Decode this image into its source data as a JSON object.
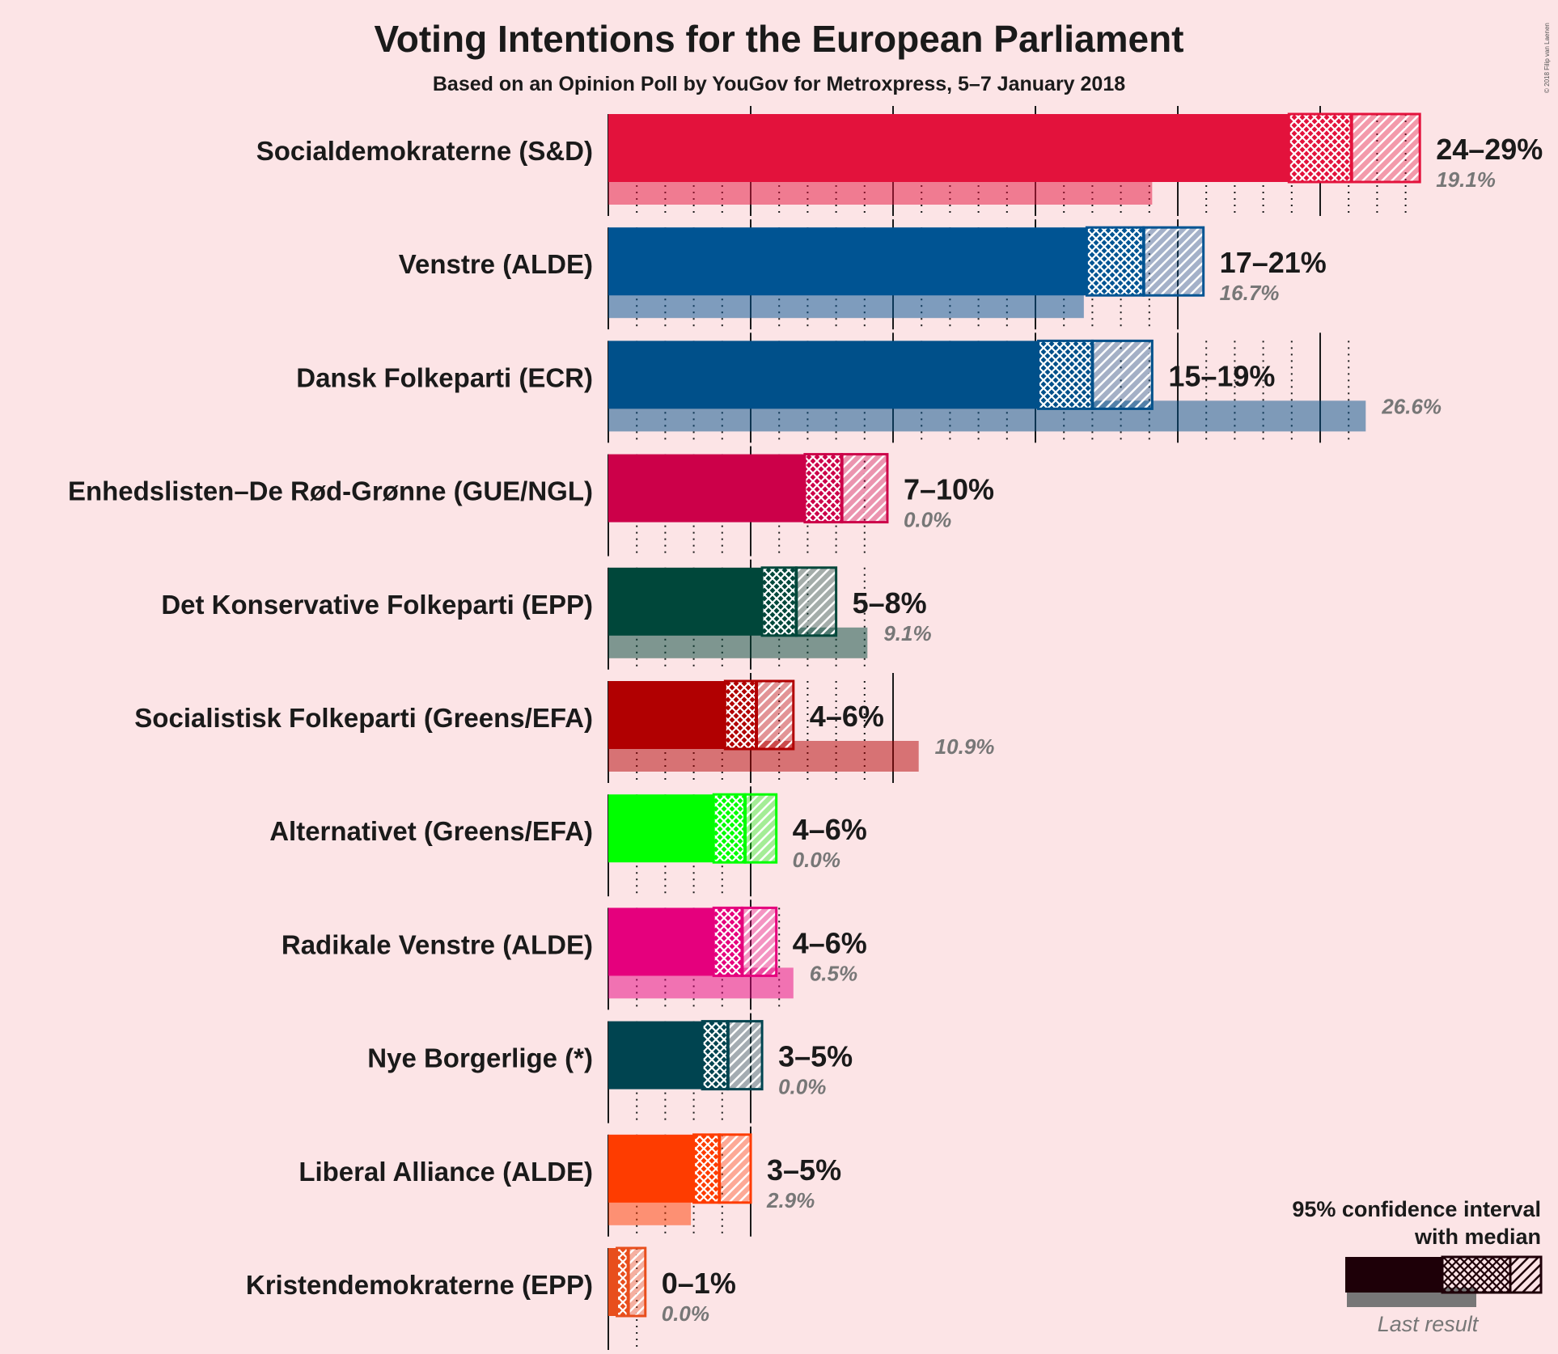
{
  "chart_data": {
    "type": "bar",
    "title": "Voting Intentions for the European Parliament",
    "subtitle": "Based on an Opinion Poll by YouGov for Metroxpress, 5–7 January 2018",
    "copyright": "© 2018 Filip van Laenen",
    "xlim": [
      0,
      30
    ],
    "gridlines": [
      0,
      5,
      10,
      15,
      20,
      25
    ],
    "legend": {
      "title_line1": "95% confidence interval",
      "title_line2": "with median",
      "last_result_label": "Last result",
      "position": "bottom-right"
    },
    "categories": [
      "Socialdemokraterne (S&D)",
      "Venstre (ALDE)",
      "Dansk Folkeparti (ECR)",
      "Enhedslisten–De Rød-Grønne (GUE/NGL)",
      "Det Konservative Folkeparti (EPP)",
      "Socialistisk Folkeparti (Greens/EFA)",
      "Alternativet (Greens/EFA)",
      "Radikale Venstre (ALDE)",
      "Nye Borgerlige (*)",
      "Liberal Alliance (ALDE)",
      "Kristendemokraterne (EPP)"
    ],
    "series": [
      {
        "parties": [
          {
            "name": "Socialdemokraterne (S&D)",
            "color": "#e3123c",
            "low": 23.9,
            "median": 26.1,
            "high": 28.5,
            "range_label": "24–29%",
            "last": 19.1,
            "last_label": "19.1%"
          },
          {
            "name": "Venstre (ALDE)",
            "color": "#005493",
            "low": 16.8,
            "median": 18.8,
            "high": 20.9,
            "range_label": "17–21%",
            "last": 16.7,
            "last_label": "16.7%"
          },
          {
            "name": "Dansk Folkeparti (ECR)",
            "color": "#00508a",
            "low": 15.1,
            "median": 17.0,
            "high": 19.1,
            "range_label": "15–19%",
            "last": 26.6,
            "last_label": "26.6%"
          },
          {
            "name": "Enhedslisten–De Rød-Grønne (GUE/NGL)",
            "color": "#cc0049",
            "low": 6.9,
            "median": 8.2,
            "high": 9.8,
            "range_label": "7–10%",
            "last": 0.0,
            "last_label": "0.0%"
          },
          {
            "name": "Det Konservative Folkeparti (EPP)",
            "color": "#00473a",
            "low": 5.4,
            "median": 6.6,
            "high": 8.0,
            "range_label": "5–8%",
            "last": 9.1,
            "last_label": "9.1%"
          },
          {
            "name": "Socialistisk Folkeparti (Greens/EFA)",
            "color": "#b10001",
            "low": 4.1,
            "median": 5.2,
            "high": 6.5,
            "range_label": "4–6%",
            "last": 10.9,
            "last_label": "10.9%"
          },
          {
            "name": "Alternativet (Greens/EFA)",
            "color": "#00ff00",
            "low": 3.7,
            "median": 4.8,
            "high": 5.9,
            "range_label": "4–6%",
            "last": 0.0,
            "last_label": "0.0%"
          },
          {
            "name": "Radikale Venstre (ALDE)",
            "color": "#e5007d",
            "low": 3.7,
            "median": 4.7,
            "high": 5.9,
            "range_label": "4–6%",
            "last": 6.5,
            "last_label": "6.5%"
          },
          {
            "name": "Nye Borgerlige (*)",
            "color": "#004450",
            "low": 3.3,
            "median": 4.2,
            "high": 5.4,
            "range_label": "3–5%",
            "last": 0.0,
            "last_label": "0.0%"
          },
          {
            "name": "Liberal Alliance (ALDE)",
            "color": "#fe3c00",
            "low": 3.0,
            "median": 3.9,
            "high": 5.0,
            "range_label": "3–5%",
            "last": 2.9,
            "last_label": "2.9%"
          },
          {
            "name": "Kristendemokraterne (EPP)",
            "color": "#e84e1c",
            "low": 0.3,
            "median": 0.7,
            "high": 1.3,
            "range_label": "0–1%",
            "last": 0.0,
            "last_label": "0.0%"
          }
        ]
      }
    ]
  }
}
